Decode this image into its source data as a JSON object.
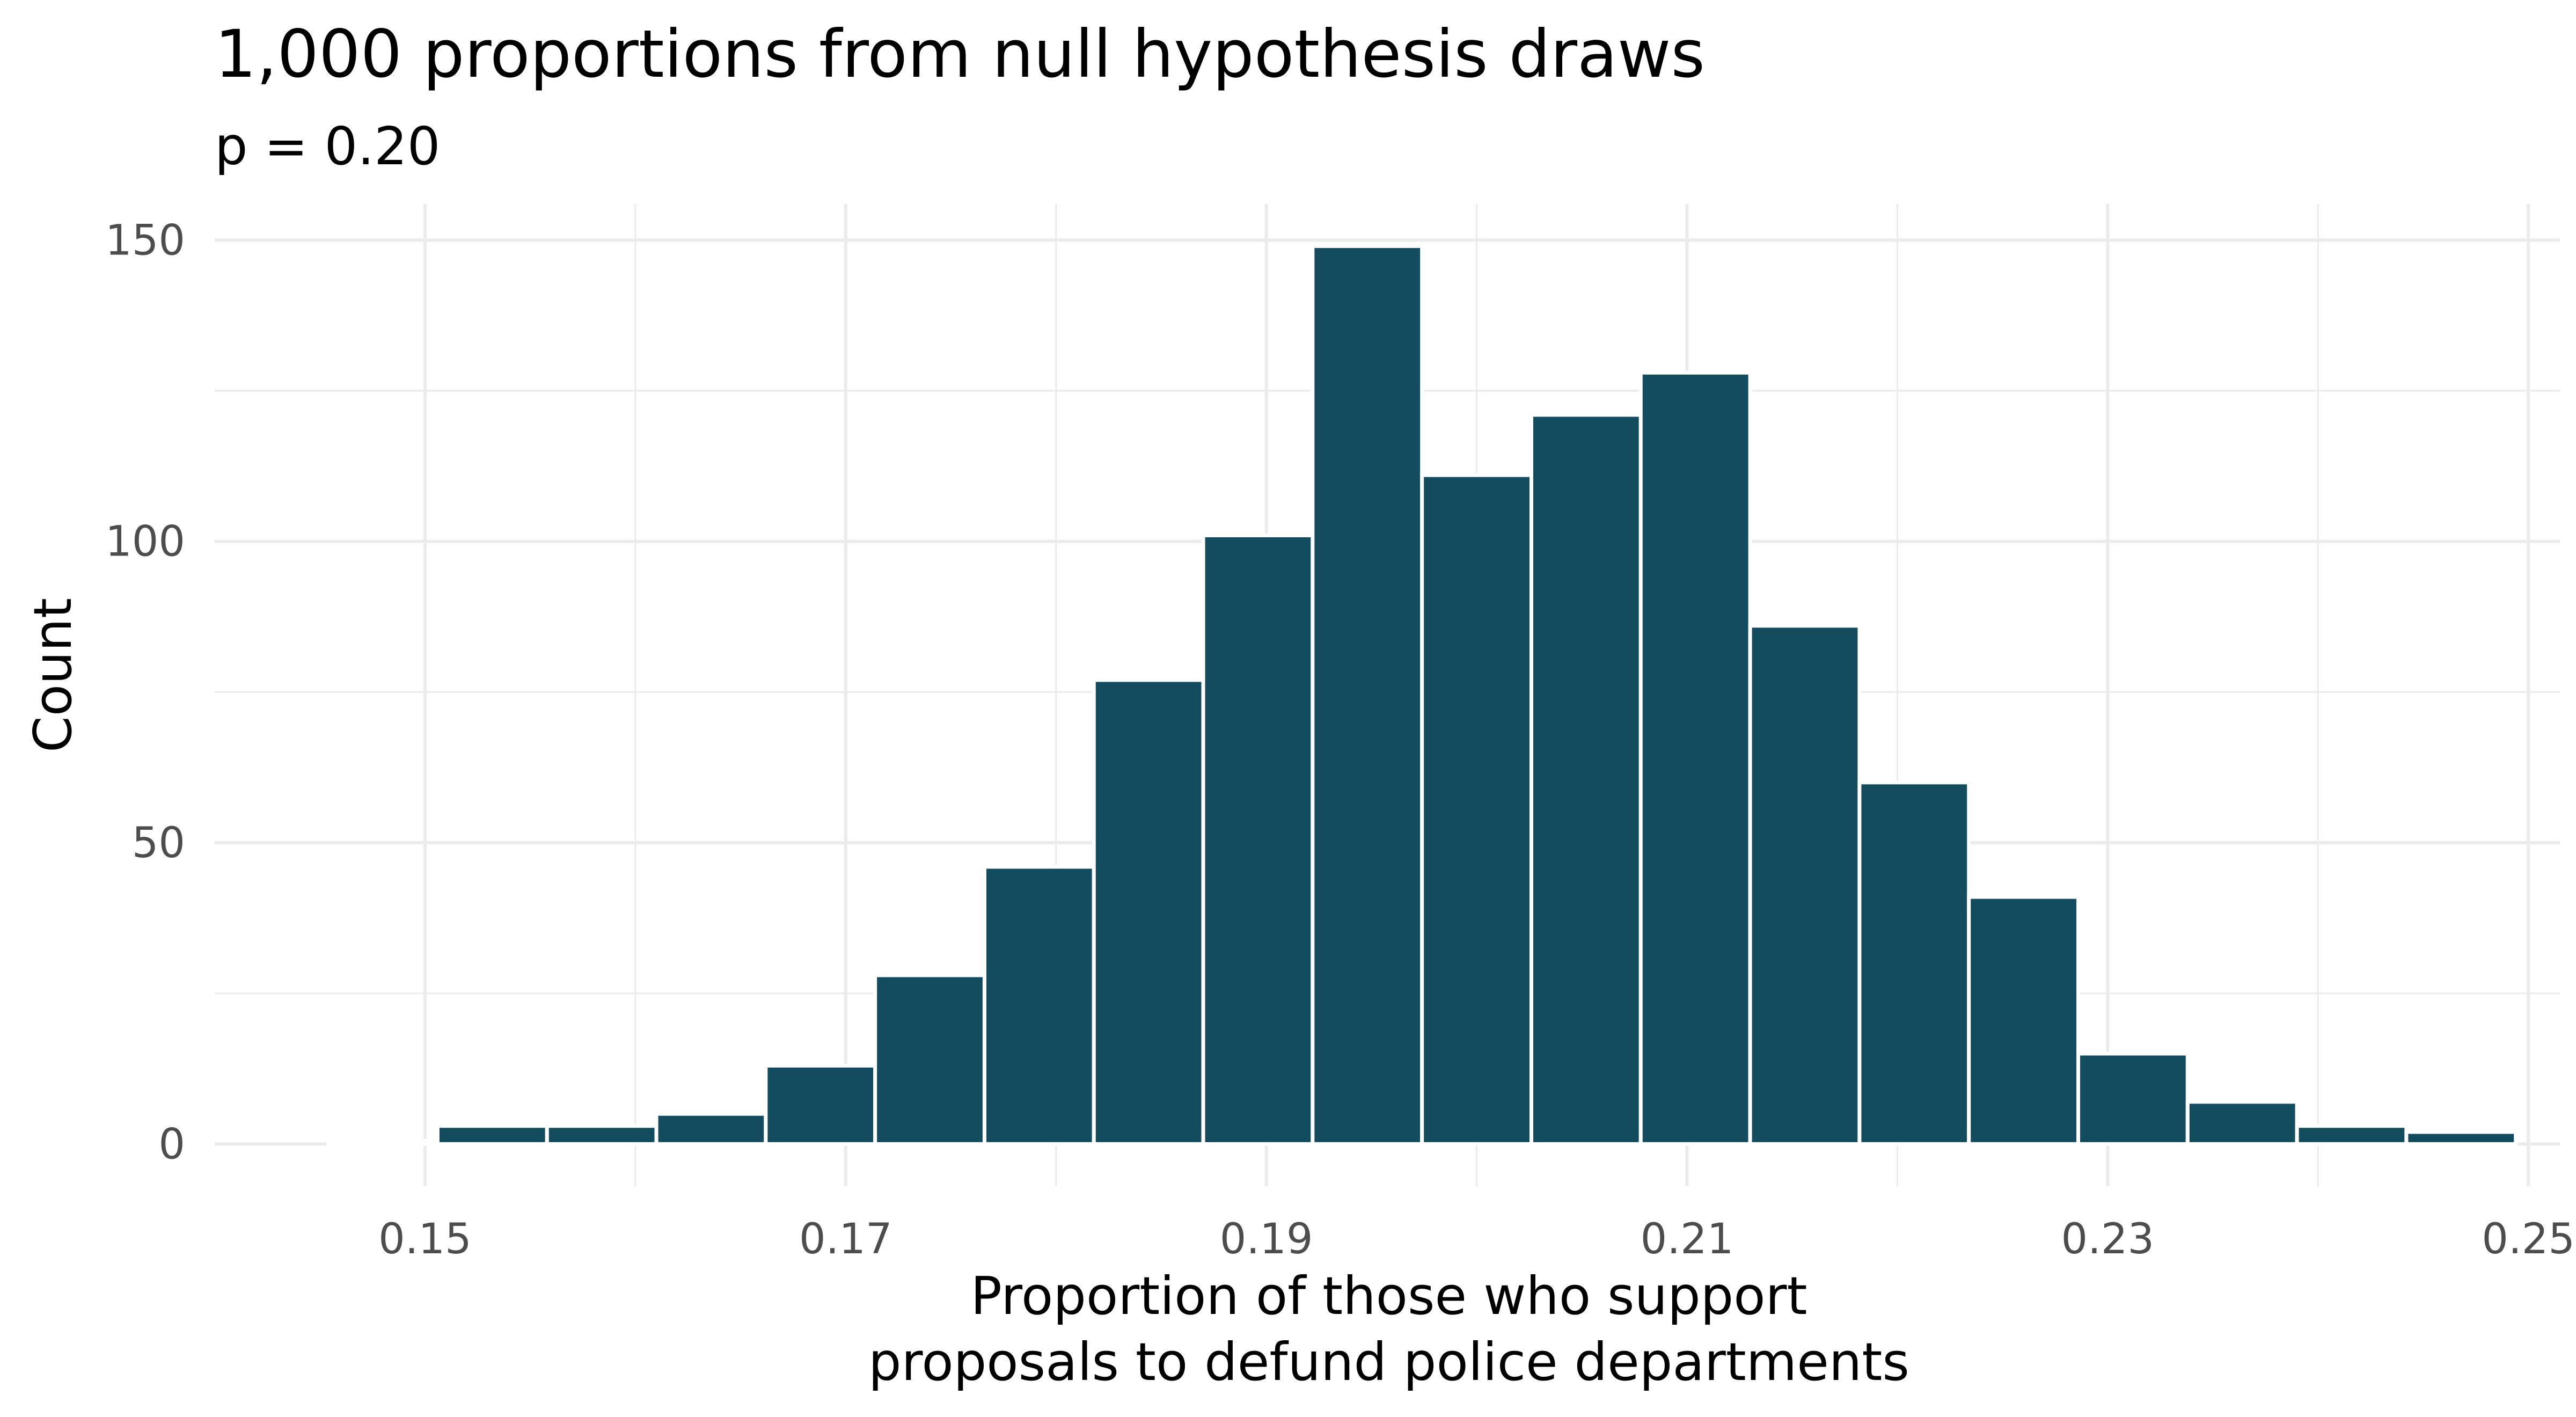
{
  "chart_data": {
    "type": "bar",
    "title": "1,000 proportions from null hypothesis draws",
    "subtitle": "p = 0.20",
    "xlabel_lines": [
      "Proportion of those who support",
      "proposals to defund police departments"
    ],
    "ylabel": "Count",
    "xlim": [
      0.14,
      0.2515
    ],
    "ylim": [
      -7,
      156
    ],
    "x_ticks": [
      "0.15",
      "0.17",
      "0.19",
      "0.21",
      "0.23",
      "0.25"
    ],
    "y_ticks": [
      "0",
      "50",
      "100",
      "150"
    ],
    "bin_width": 0.0052,
    "bins": [
      {
        "x": 0.148,
        "count": 0.5
      },
      {
        "x": 0.1532,
        "count": 3
      },
      {
        "x": 0.1584,
        "count": 3
      },
      {
        "x": 0.1636,
        "count": 5
      },
      {
        "x": 0.1688,
        "count": 13
      },
      {
        "x": 0.174,
        "count": 28
      },
      {
        "x": 0.1792,
        "count": 46
      },
      {
        "x": 0.1844,
        "count": 77
      },
      {
        "x": 0.1896,
        "count": 101
      },
      {
        "x": 0.1948,
        "count": 149
      },
      {
        "x": 0.2,
        "count": 111
      },
      {
        "x": 0.2052,
        "count": 121
      },
      {
        "x": 0.2104,
        "count": 128
      },
      {
        "x": 0.2156,
        "count": 86
      },
      {
        "x": 0.2208,
        "count": 60
      },
      {
        "x": 0.226,
        "count": 41
      },
      {
        "x": 0.2312,
        "count": 15
      },
      {
        "x": 0.2364,
        "count": 7
      },
      {
        "x": 0.2416,
        "count": 3
      },
      {
        "x": 0.2468,
        "count": 2
      }
    ],
    "bar_color": "#134b5f",
    "bar_outline": "#ffffff",
    "grid": true,
    "legend": "none"
  }
}
